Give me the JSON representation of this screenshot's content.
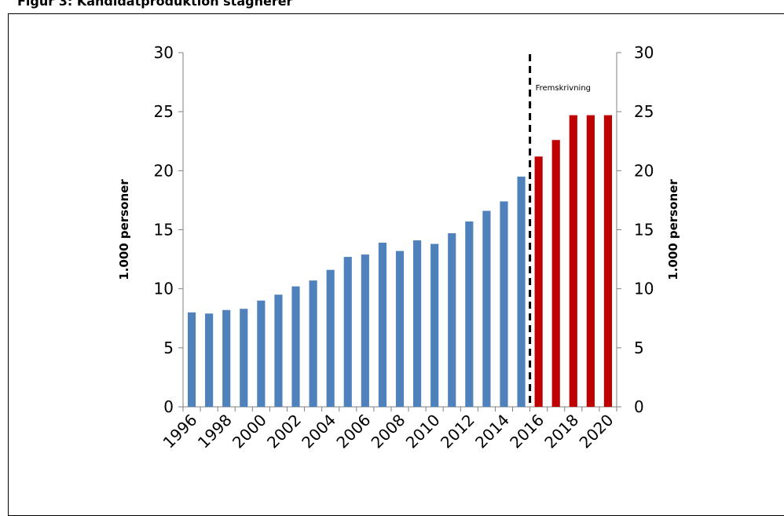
{
  "chart_data": {
    "type": "bar",
    "title": "Figur 3: Kandidatproduktion stagnerer",
    "xlabel": "",
    "ylabel_left": "1.000 personer",
    "ylabel_right": "1.000 personer",
    "ylim": [
      0,
      30
    ],
    "yticks": [
      0,
      5,
      10,
      15,
      20,
      25,
      30
    ],
    "x_tick_labels": [
      "1996",
      "1998",
      "2000",
      "2002",
      "2004",
      "2006",
      "2008",
      "2010",
      "2012",
      "2014",
      "2016",
      "2018",
      "2020"
    ],
    "categories": [
      "1996",
      "1997",
      "1998",
      "1999",
      "2000",
      "2001",
      "2002",
      "2003",
      "2004",
      "2005",
      "2006",
      "2007",
      "2008",
      "2009",
      "2010",
      "2011",
      "2012",
      "2013",
      "2014",
      "2015",
      "2016",
      "2017",
      "2018",
      "2019",
      "2020"
    ],
    "series": [
      {
        "color": "#4F81BD",
        "values": [
          8.0,
          7.9,
          8.2,
          8.3,
          9.0,
          9.5,
          10.2,
          10.7,
          11.6,
          12.7,
          12.9,
          13.9,
          13.2,
          14.1,
          13.8,
          14.7,
          15.7,
          16.6,
          17.4,
          19.5,
          null,
          null,
          null,
          null,
          null
        ]
      },
      {
        "color": "#C00000",
        "values": [
          null,
          null,
          null,
          null,
          null,
          null,
          null,
          null,
          null,
          null,
          null,
          null,
          null,
          null,
          null,
          null,
          null,
          null,
          null,
          null,
          21.2,
          22.6,
          24.7,
          24.7,
          24.7
        ]
      }
    ],
    "annotation": {
      "text": "Fremskrivning",
      "at_category": "2016"
    },
    "grid": false,
    "legend": "none"
  }
}
